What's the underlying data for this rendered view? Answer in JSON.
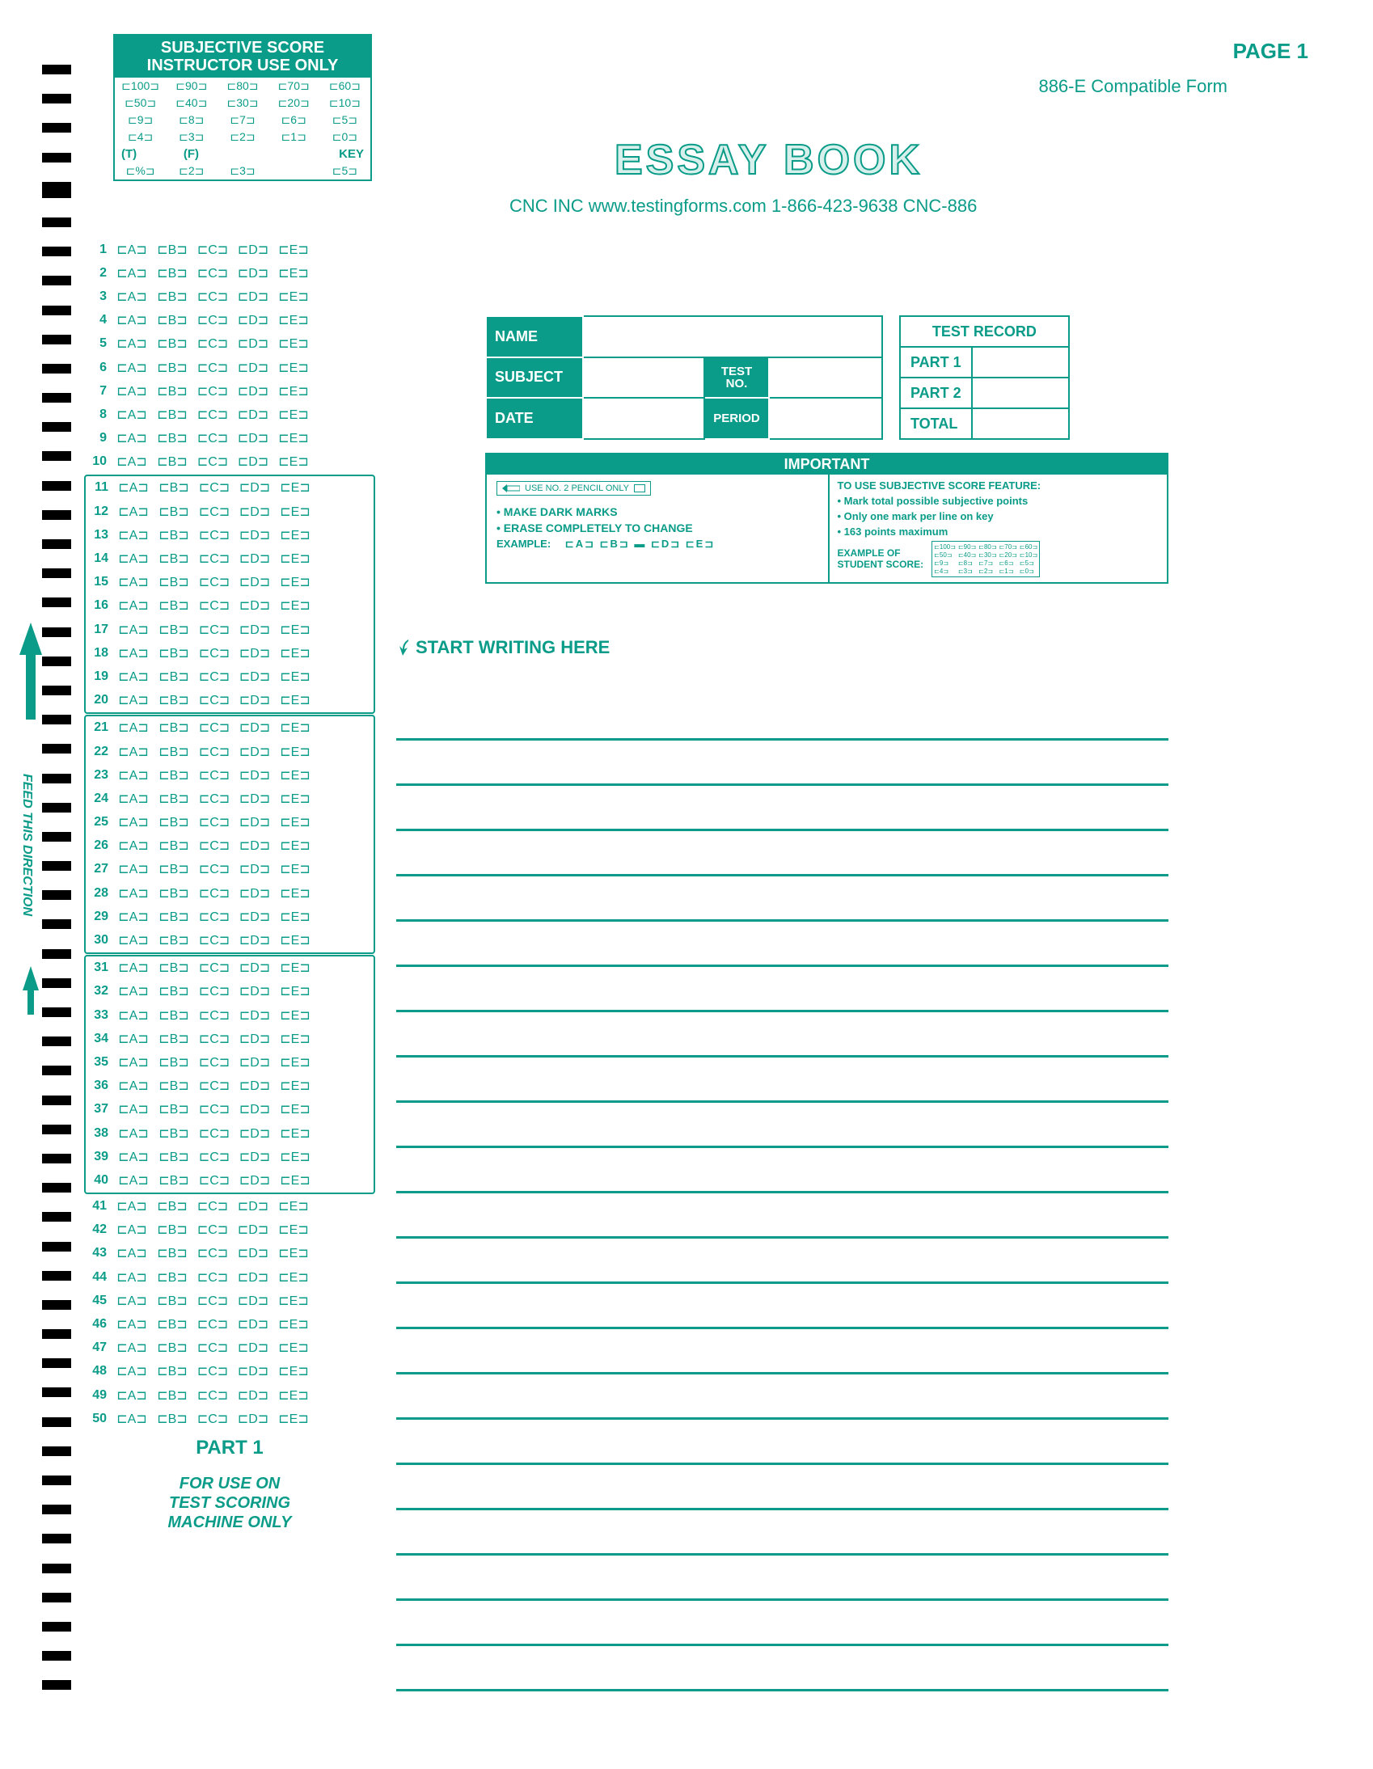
{
  "colors": {
    "teal": "#0a9c88",
    "teal_light": "#7fccc0",
    "black": "#000000"
  },
  "page_label": "PAGE 1",
  "form_label": "886-E Compatible Form",
  "essay_title": "ESSAY BOOK",
  "cnc_line": "CNC INC www.testingforms.com 1-866-423-9638  CNC-886",
  "subjective": {
    "header1": "SUBJECTIVE SCORE",
    "header2": "INSTRUCTOR USE ONLY",
    "rows": [
      [
        "100",
        "90",
        "80",
        "70",
        "60"
      ],
      [
        "50",
        "40",
        "30",
        "20",
        "10"
      ],
      [
        "9",
        "8",
        "7",
        "6",
        "5"
      ],
      [
        "4",
        "3",
        "2",
        "1",
        "0"
      ]
    ],
    "key_t": "(T)",
    "key_f": "(F)",
    "key_label": "KEY",
    "pct_row": [
      "%",
      "2",
      "3",
      "",
      "5"
    ]
  },
  "answer": {
    "letters": [
      "A",
      "B",
      "C",
      "D",
      "E"
    ],
    "count": 50,
    "groups": [
      [
        11,
        20
      ],
      [
        21,
        30
      ],
      [
        31,
        40
      ]
    ],
    "part_label": "PART 1",
    "footer": "FOR USE ON\nTEST SCORING\nMACHINE ONLY"
  },
  "info": {
    "name": "NAME",
    "subject": "SUBJECT",
    "date": "DATE",
    "test_no": "TEST\nNO.",
    "period": "PERIOD"
  },
  "record": {
    "header": "TEST RECORD",
    "part1": "PART 1",
    "part2": "PART 2",
    "total": "TOTAL"
  },
  "important": {
    "header": "IMPORTANT",
    "pencil": "USE NO. 2 PENCIL ONLY",
    "left_items": [
      "MAKE DARK MARKS",
      "ERASE COMPLETELY TO CHANGE"
    ],
    "example_label": "EXAMPLE:",
    "example_marks": [
      "⊏A⊐",
      "⊏B⊐",
      "▬",
      "⊏D⊐",
      "⊏E⊐"
    ],
    "right_title": "TO USE SUBJECTIVE SCORE FEATURE:",
    "right_items": [
      "Mark total possible subjective points",
      "Only one mark per line on key",
      "163 points maximum"
    ],
    "example_of": "EXAMPLE OF",
    "student_score": "STUDENT SCORE:",
    "mini": [
      "⊏100⊐",
      "⊏90⊐",
      "⊏80⊐",
      "⊏70⊐",
      "⊏60⊐",
      "⊏50⊐",
      "⊏40⊐",
      "⊏30⊐",
      "⊏20⊐",
      "⊏10⊐",
      "⊏9⊐",
      "⊏8⊐",
      "⊏7⊐",
      "⊏6⊐",
      "⊏5⊐",
      "⊏4⊐",
      "⊏3⊐",
      "⊏2⊐",
      "⊏1⊐",
      "⊏0⊐"
    ]
  },
  "start_writing": "START WRITING HERE",
  "feed_text": "FEED THIS DIRECTION",
  "essay_line_count": 22,
  "timing_mark_count": 56
}
